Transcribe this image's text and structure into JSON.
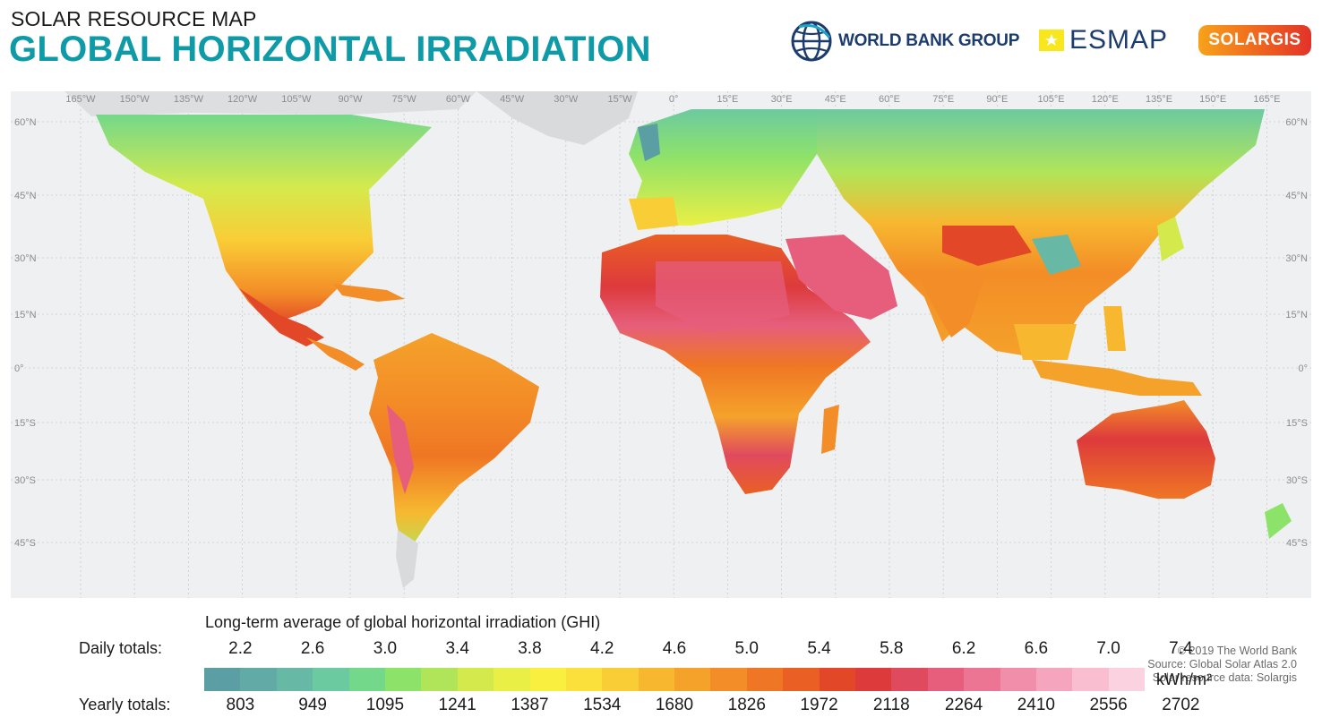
{
  "header": {
    "subtitle": "SOLAR RESOURCE MAP",
    "title": "GLOBAL HORIZONTAL IRRADIATION"
  },
  "logos": {
    "world_bank": "WORLD BANK GROUP",
    "esmap": "ESMAP",
    "solargis": "SOLARGIS"
  },
  "map": {
    "longitude_labels": [
      "165°W",
      "150°W",
      "135°W",
      "120°W",
      "105°W",
      "90°W",
      "75°W",
      "60°W",
      "45°W",
      "30°W",
      "15°W",
      "0°",
      "15°E",
      "30°E",
      "45°E",
      "60°E",
      "75°E",
      "90°E",
      "105°E",
      "120°E",
      "135°E",
      "150°E",
      "165°E"
    ],
    "latitude_labels": [
      "60°N",
      "45°N",
      "30°N",
      "15°N",
      "0°",
      "15°S",
      "30°S",
      "45°S"
    ],
    "credits": [
      "© 2019 The World Bank",
      "Source: Global Solar Atlas 2.0",
      "Solar resource data: Solargis"
    ]
  },
  "legend": {
    "title": "Long-term average of global horizontal irradiation (GHI)",
    "daily_label": "Daily totals:",
    "yearly_label": "Yearly totals:",
    "unit": "kWh/m²",
    "daily_values": [
      "2.2",
      "2.6",
      "3.0",
      "3.4",
      "3.8",
      "4.2",
      "4.6",
      "5.0",
      "5.4",
      "5.8",
      "6.2",
      "6.6",
      "7.0",
      "7.4"
    ],
    "yearly_values": [
      "803",
      "949",
      "1095",
      "1241",
      "1387",
      "1534",
      "1680",
      "1826",
      "1972",
      "2118",
      "2264",
      "2410",
      "2556",
      "2702"
    ],
    "colors": [
      "#5b9ea3",
      "#62aaa6",
      "#68b8a6",
      "#6ccaa0",
      "#74d88a",
      "#8de26a",
      "#b0e55a",
      "#d4ea4c",
      "#eaef45",
      "#f8ef3f",
      "#fbe03c",
      "#f9cd36",
      "#f7b830",
      "#f5a22b",
      "#f38d27",
      "#ef7624",
      "#ea5f24",
      "#e24827",
      "#dd3a3c",
      "#e04a5e",
      "#e65e7c",
      "#ec7594",
      "#f18eaa",
      "#f5a6be",
      "#f9bed0",
      "#fbd3e0"
    ]
  },
  "chart_data": {
    "type": "heatmap",
    "title": "GLOBAL HORIZONTAL IRRADIATION",
    "subtitle": "SOLAR RESOURCE MAP",
    "legend_title": "Long-term average of global horizontal irradiation (GHI)",
    "unit": "kWh/m²",
    "daily_totals": [
      2.2,
      2.6,
      3.0,
      3.4,
      3.8,
      4.2,
      4.6,
      5.0,
      5.4,
      5.8,
      6.2,
      6.6,
      7.0,
      7.4
    ],
    "yearly_totals": [
      803,
      949,
      1095,
      1241,
      1387,
      1534,
      1680,
      1826,
      1972,
      2118,
      2264,
      2410,
      2556,
      2702
    ],
    "longitude_range": [
      -180,
      180
    ],
    "latitude_range": [
      -60,
      65
    ],
    "grid": true
  }
}
